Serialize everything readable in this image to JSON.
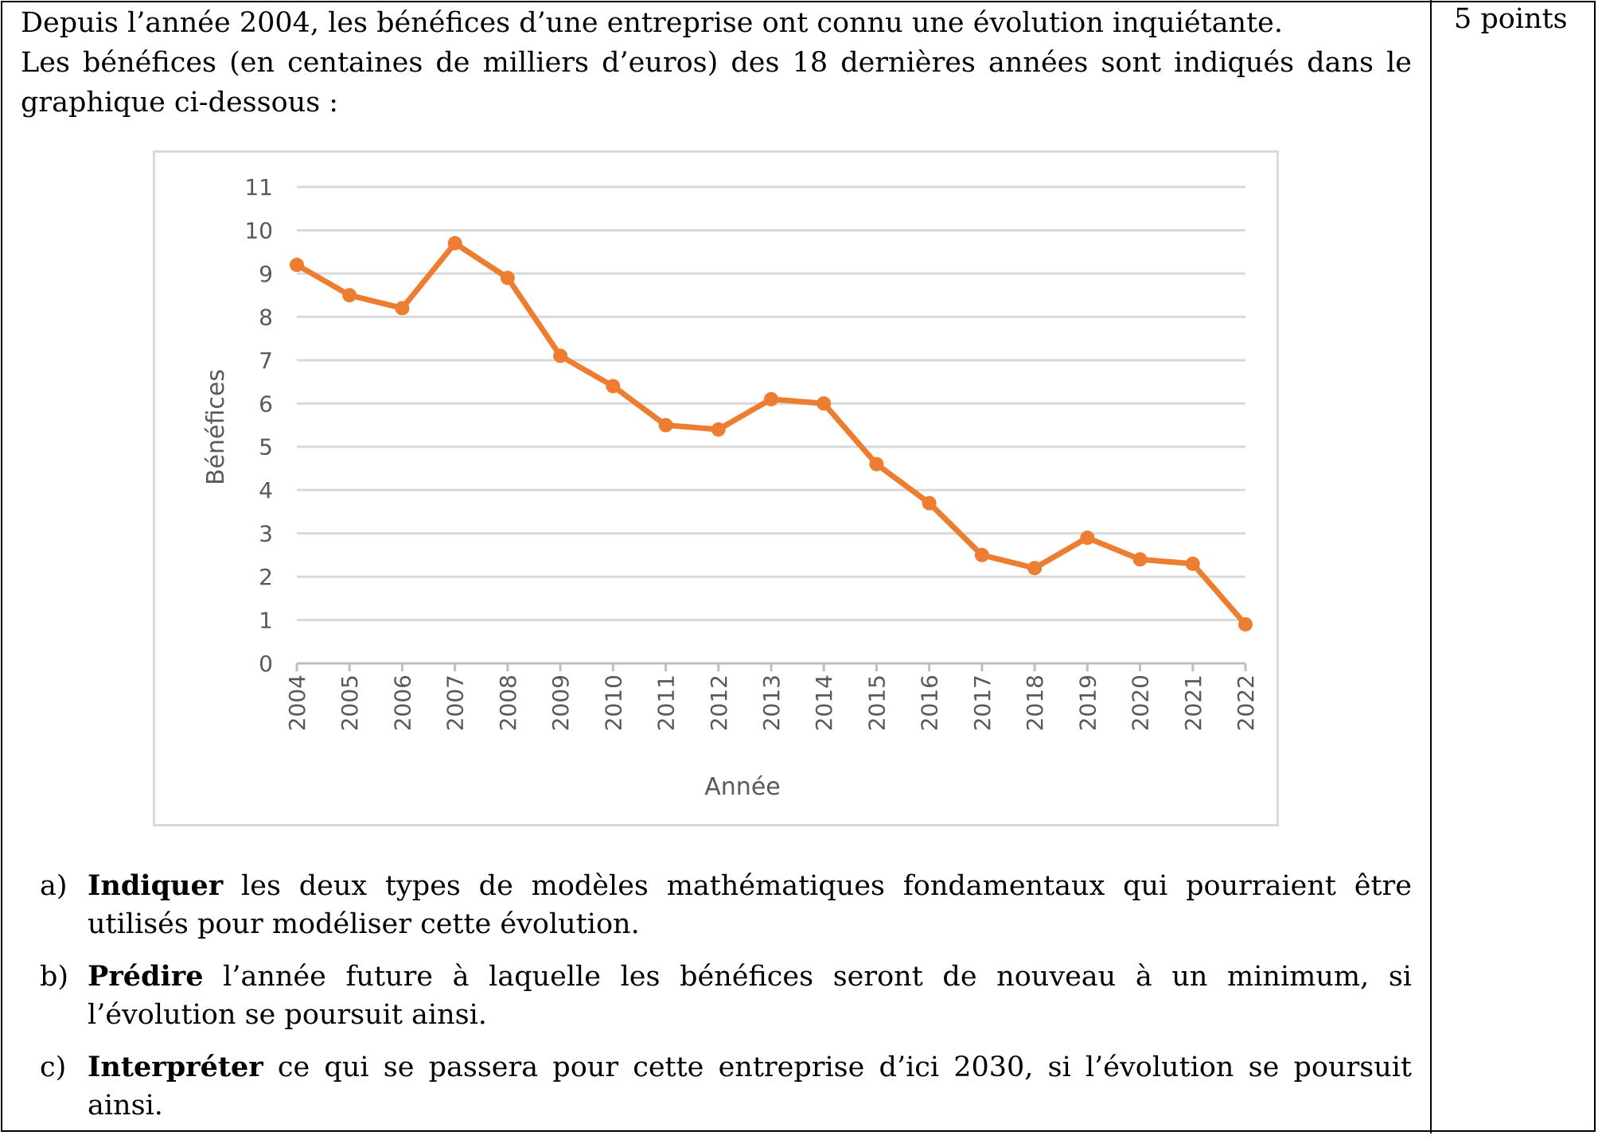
{
  "points": "5 points",
  "intro": {
    "line1": "Depuis l’année 2004, les bénéfices d’une entreprise ont connu une évolution inquiétante.",
    "line2": "Les bénéfices (en centaines de milliers d’euros) des 18 dernières années sont indiqués dans le graphique ci-dessous :"
  },
  "chart_data": {
    "type": "line",
    "title": "",
    "xlabel": "Année",
    "ylabel": "Bénéfices",
    "ylim": [
      0,
      11
    ],
    "yticks": [
      0,
      1,
      2,
      3,
      4,
      5,
      6,
      7,
      8,
      9,
      10,
      11
    ],
    "grid": true,
    "legend": "none",
    "color": "#ed7d31",
    "categories": [
      "2004",
      "2005",
      "2006",
      "2007",
      "2008",
      "2009",
      "2010",
      "2011",
      "2012",
      "2013",
      "2014",
      "2015",
      "2016",
      "2017",
      "2018",
      "2019",
      "2020",
      "2021",
      "2022"
    ],
    "values": [
      9.2,
      8.5,
      8.2,
      9.7,
      8.9,
      7.1,
      6.4,
      5.5,
      5.4,
      6.1,
      6.0,
      4.6,
      3.7,
      2.5,
      2.2,
      2.9,
      2.4,
      2.3,
      0.9
    ]
  },
  "questions": [
    {
      "letter": "a)",
      "verb": "Indiquer",
      "text": " les deux types de modèles mathématiques fondamentaux qui pourraient être utilisés pour modéliser cette évolution."
    },
    {
      "letter": "b)",
      "verb": "Prédire",
      "text": " l’année future à laquelle les bénéfices seront de nouveau à un minimum, si l’évolution se poursuit ainsi."
    },
    {
      "letter": "c)",
      "verb": "Interpréter",
      "text": " ce qui se passera pour cette entreprise d’ici 2030, si l’évolution se poursuit ainsi."
    }
  ]
}
